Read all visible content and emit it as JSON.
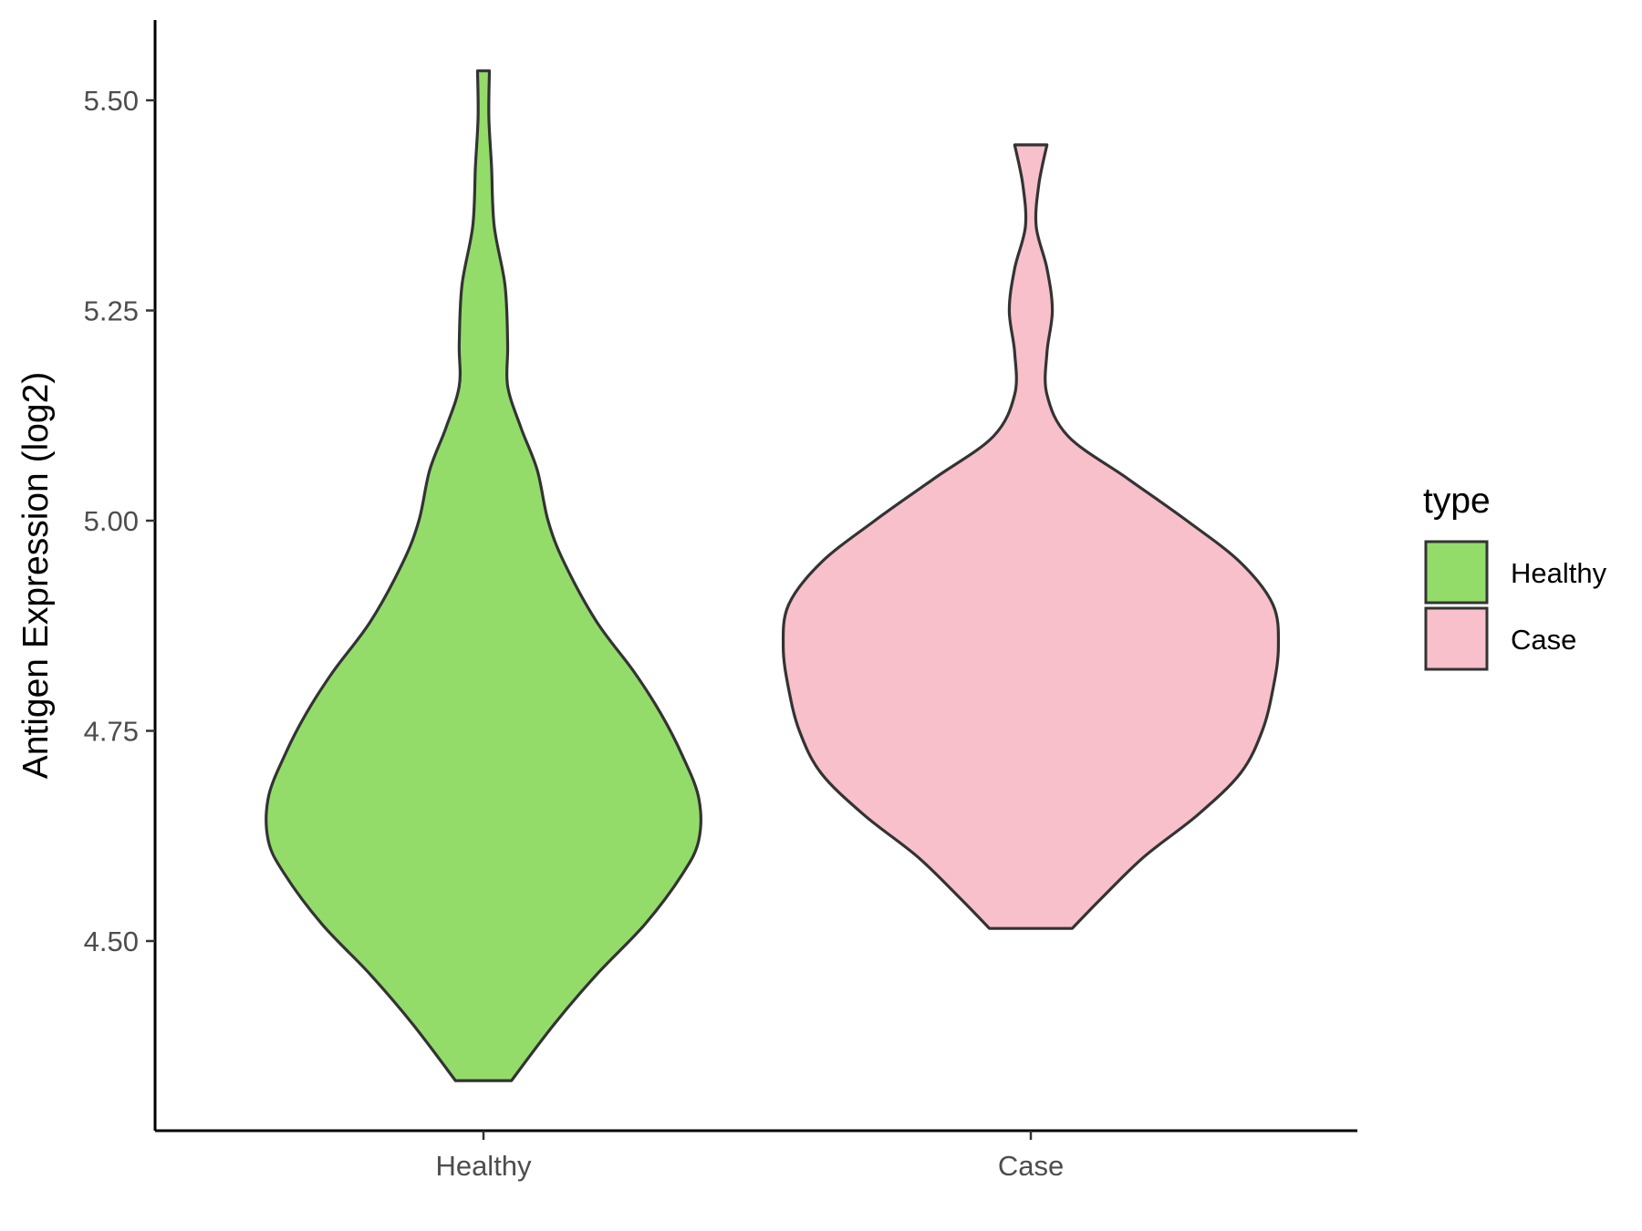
{
  "chart_data": {
    "type": "violin",
    "title": "",
    "xlabel": "",
    "ylabel": "Antigen Expression (log2)",
    "ylim": [
      4.33,
      5.59
    ],
    "yticks": [
      4.5,
      4.75,
      5.0,
      5.25,
      5.5
    ],
    "ytick_labels": [
      "4.50",
      "4.75",
      "5.00",
      "5.25",
      "5.50"
    ],
    "categories": [
      "Healthy",
      "Case"
    ],
    "grid": false,
    "legend": {
      "title": "type",
      "position": "right",
      "entries": [
        {
          "label": "Healthy",
          "color": "#93dc6a"
        },
        {
          "label": "Case",
          "color": "#f7c0cb"
        }
      ]
    },
    "outline_color": "#333333",
    "series": [
      {
        "name": "Healthy",
        "color": "#93dc6a",
        "min": 4.334,
        "max": 5.535,
        "profile": [
          [
            4.334,
            0.052
          ],
          [
            4.4,
            0.13
          ],
          [
            4.46,
            0.21
          ],
          [
            4.52,
            0.3
          ],
          [
            4.58,
            0.37
          ],
          [
            4.62,
            0.4
          ],
          [
            4.67,
            0.4
          ],
          [
            4.72,
            0.37
          ],
          [
            4.77,
            0.33
          ],
          [
            4.82,
            0.28
          ],
          [
            4.88,
            0.21
          ],
          [
            4.95,
            0.15
          ],
          [
            5.0,
            0.12
          ],
          [
            5.06,
            0.1
          ],
          [
            5.11,
            0.07
          ],
          [
            5.16,
            0.045
          ],
          [
            5.21,
            0.045
          ],
          [
            5.28,
            0.04
          ],
          [
            5.35,
            0.02
          ],
          [
            5.42,
            0.015
          ],
          [
            5.48,
            0.01
          ],
          [
            5.535,
            0.011
          ]
        ]
      },
      {
        "name": "Case",
        "color": "#f7c0cb",
        "min": 4.515,
        "max": 5.447,
        "profile": [
          [
            4.515,
            0.077
          ],
          [
            4.55,
            0.13
          ],
          [
            4.6,
            0.21
          ],
          [
            4.65,
            0.31
          ],
          [
            4.7,
            0.39
          ],
          [
            4.75,
            0.43
          ],
          [
            4.8,
            0.45
          ],
          [
            4.85,
            0.46
          ],
          [
            4.9,
            0.45
          ],
          [
            4.95,
            0.39
          ],
          [
            5.0,
            0.29
          ],
          [
            5.05,
            0.18
          ],
          [
            5.1,
            0.07
          ],
          [
            5.15,
            0.03
          ],
          [
            5.2,
            0.03
          ],
          [
            5.25,
            0.04
          ],
          [
            5.3,
            0.03
          ],
          [
            5.35,
            0.01
          ],
          [
            5.4,
            0.015
          ],
          [
            5.447,
            0.03
          ]
        ]
      }
    ]
  }
}
